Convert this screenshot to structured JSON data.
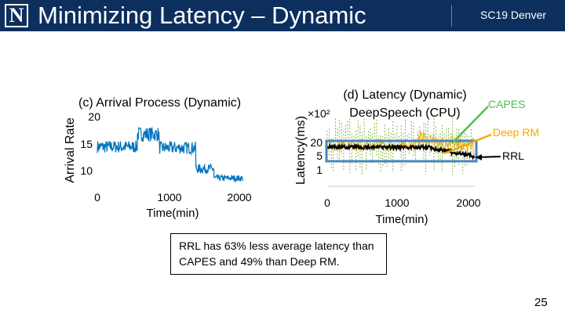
{
  "header": {
    "logo_letter": "N",
    "title": "Minimizing Latency – Dynamic",
    "event": "SC19 Denver"
  },
  "chart_data": [
    {
      "type": "line",
      "title": "(c) Arrival Process (Dynamic)",
      "xlabel": "Time(min)",
      "ylabel": "Arrival Rate",
      "x_ticks": [
        "0",
        "1000",
        "2000"
      ],
      "y_ticks": [
        "10",
        "15",
        "20"
      ],
      "xlim": [
        0,
        2000
      ],
      "ylim": [
        8,
        21
      ],
      "series": [
        {
          "name": "arrival",
          "color": "#0072bd",
          "segments": [
            {
              "x_start": 0,
              "x_end": 550,
              "mean": 14.8,
              "noise": 1.2
            },
            {
              "x_start": 550,
              "x_end": 850,
              "mean": 17.2,
              "noise": 1.4
            },
            {
              "x_start": 850,
              "x_end": 1350,
              "mean": 14.6,
              "noise": 1.2
            },
            {
              "x_start": 1350,
              "x_end": 1600,
              "mean": 10.6,
              "noise": 0.9
            },
            {
              "x_start": 1600,
              "x_end": 2000,
              "mean": 8.8,
              "noise": 0.6
            }
          ]
        }
      ]
    },
    {
      "type": "line",
      "title": "(d) Latency (Dynamic)",
      "subtitle": "DeepSpeech (CPU)",
      "xlabel": "Time(min)",
      "ylabel": "Latency(ms)",
      "y_multiplier": "×10²",
      "x_ticks": [
        "0",
        "1000",
        "2000"
      ],
      "y_ticks": [
        "1",
        "5",
        "20"
      ],
      "xlim": [
        0,
        2000
      ],
      "series": [
        {
          "name": "CAPES",
          "color": "#77ac30"
        },
        {
          "name": "DeepRM",
          "color": "#edb120"
        },
        {
          "name": "RRL",
          "color": "#000000"
        }
      ]
    }
  ],
  "annotations": {
    "capes": "CAPES",
    "deeprm": "Deep RM",
    "rrl": "RRL",
    "capes_color": "#4fbf4a",
    "deeprm_color": "#f2a900",
    "highlight_color": "#4a86b9"
  },
  "callout": "RRL has 63% less average latency than CAPES and 49% than Deep RM.",
  "page_number": "25"
}
